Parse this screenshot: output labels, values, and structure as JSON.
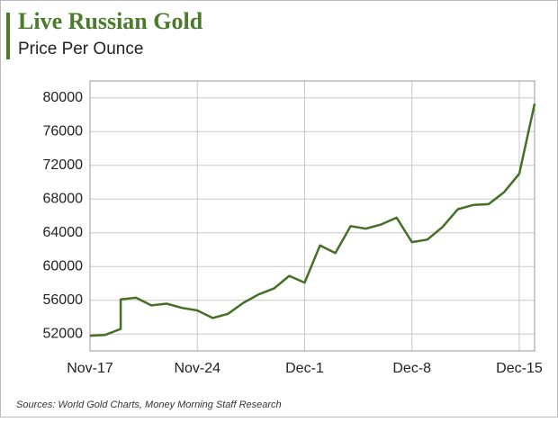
{
  "chart_data": {
    "type": "line",
    "title": "Live Russian Gold",
    "subtitle": "Price Per Ounce",
    "source": "Sources: World Gold Charts, Money Morning Staff Research",
    "x": [
      "Nov-17",
      "Nov-18",
      "Nov-19",
      "Nov-19",
      "Nov-20",
      "Nov-21",
      "Nov-22",
      "Nov-23",
      "Nov-24",
      "Nov-25",
      "Nov-26",
      "Nov-27",
      "Nov-28",
      "Nov-29",
      "Nov-30",
      "Dec-1",
      "Dec-2",
      "Dec-3",
      "Dec-4",
      "Dec-5",
      "Dec-6",
      "Dec-7",
      "Dec-8",
      "Dec-9",
      "Dec-10",
      "Dec-11",
      "Dec-12",
      "Dec-13",
      "Dec-14",
      "Dec-15",
      "Dec-16"
    ],
    "series": [
      {
        "name": "Price Per Ounce",
        "color": "#456f25",
        "values": [
          51800,
          51900,
          52600,
          56100,
          56300,
          55400,
          55600,
          55100,
          54800,
          53900,
          54400,
          55700,
          56700,
          57400,
          58900,
          58100,
          62500,
          61600,
          64800,
          64500,
          65000,
          65800,
          62900,
          63200,
          64700,
          66800,
          67300,
          67400,
          68800,
          71000,
          79300
        ]
      }
    ],
    "xlim": [
      "Nov-17",
      "Dec-16"
    ],
    "xticks": [
      "Nov-17",
      "Nov-24",
      "Dec-1",
      "Dec-8",
      "Dec-15"
    ],
    "ylim": [
      50000,
      82000
    ],
    "yticks": [
      52000,
      56000,
      60000,
      64000,
      68000,
      72000,
      76000,
      80000
    ],
    "grid": true
  }
}
